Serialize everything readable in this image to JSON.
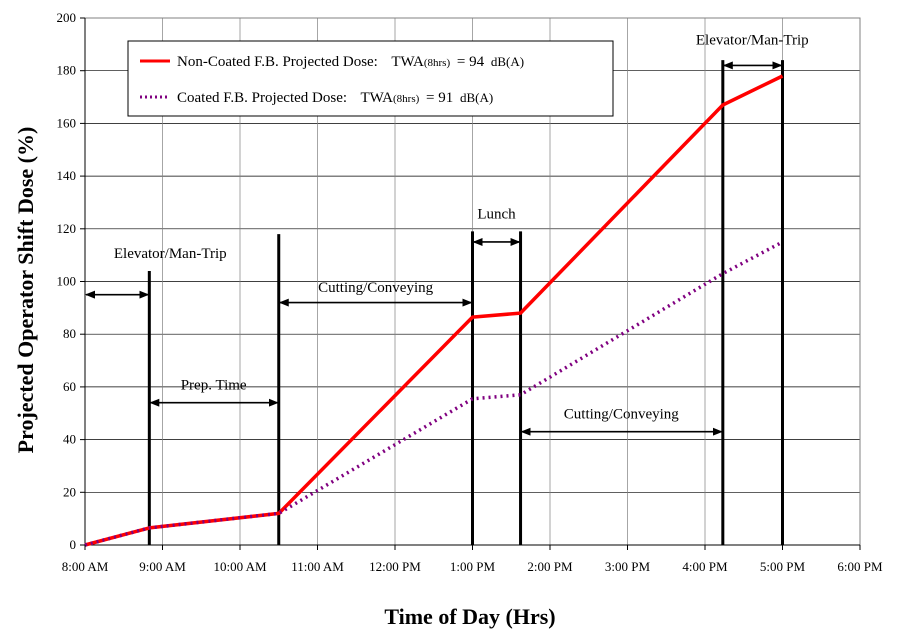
{
  "chart_data": {
    "type": "line",
    "xlabel": "Time of Day (Hrs)",
    "ylabel": "Projected Operator Shift Dose (%)",
    "xlim": [
      8,
      18
    ],
    "ylim": [
      0,
      200
    ],
    "grid": true,
    "legend_position": "top-left",
    "x_ticks": [
      {
        "x": 8,
        "label": "8:00 AM"
      },
      {
        "x": 9,
        "label": "9:00 AM"
      },
      {
        "x": 10,
        "label": "10:00 AM"
      },
      {
        "x": 11,
        "label": "11:00 AM"
      },
      {
        "x": 12,
        "label": "12:00 PM"
      },
      {
        "x": 13,
        "label": "1:00 PM"
      },
      {
        "x": 14,
        "label": "2:00 PM"
      },
      {
        "x": 15,
        "label": "3:00 PM"
      },
      {
        "x": 16,
        "label": "4:00 PM"
      },
      {
        "x": 17,
        "label": "5:00 PM"
      },
      {
        "x": 18,
        "label": "6:00 PM"
      }
    ],
    "y_ticks": [
      {
        "y": 0,
        "label": "0"
      },
      {
        "y": 20,
        "label": "20"
      },
      {
        "y": 40,
        "label": "40"
      },
      {
        "y": 60,
        "label": "60"
      },
      {
        "y": 80,
        "label": "80"
      },
      {
        "y": 100,
        "label": "100"
      },
      {
        "y": 120,
        "label": "120"
      },
      {
        "y": 140,
        "label": "140"
      },
      {
        "y": 160,
        "label": "160"
      },
      {
        "y": 180,
        "label": "180"
      },
      {
        "y": 200,
        "label": "200"
      }
    ],
    "series": [
      {
        "name": "Non-Coated F.B. Projected Dose:",
        "twa_label": "TWA",
        "twa_sub": "(8hrs)",
        "twa_value": "= 94",
        "twa_unit": "dB(A)",
        "color": "#ff0000",
        "style": "solid",
        "points": [
          [
            8,
            0
          ],
          [
            8.83,
            6.5
          ],
          [
            10.5,
            12
          ],
          [
            13,
            86.5
          ],
          [
            13.62,
            88
          ],
          [
            16.23,
            167
          ],
          [
            17,
            178
          ]
        ]
      },
      {
        "name": "Coated F.B. Projected Dose:",
        "twa_label": "TWA",
        "twa_sub": "(8hrs)",
        "twa_value": "= 91",
        "twa_unit": "dB(A)",
        "color": "#800080",
        "style": "dotted",
        "points": [
          [
            8,
            0
          ],
          [
            8.83,
            6.5
          ],
          [
            10.5,
            12
          ],
          [
            13,
            55.5
          ],
          [
            13.62,
            57
          ],
          [
            16.23,
            103
          ],
          [
            17,
            115
          ]
        ]
      }
    ],
    "markers": [
      {
        "x": 8.83,
        "y_top": 104
      },
      {
        "x": 10.5,
        "y_top": 118
      },
      {
        "x": 13,
        "y_top": 119
      },
      {
        "x": 13.62,
        "y_top": 119
      },
      {
        "x": 16.23,
        "y_top": 184
      },
      {
        "x": 17,
        "y_top": 184
      }
    ],
    "annotations": [
      {
        "text": "Elevator/Man-Trip",
        "x_from": 8,
        "x_to": 8.83,
        "y": 95,
        "text_x": 9.1,
        "text_y": 109
      },
      {
        "text": "Prep. Time",
        "x_from": 8.83,
        "x_to": 10.5,
        "y": 54,
        "text_x": 9.66,
        "text_y": 59
      },
      {
        "text": "Cutting/Conveying",
        "x_from": 10.5,
        "x_to": 13,
        "y": 92,
        "text_x": 11.75,
        "text_y": 96
      },
      {
        "text": "Lunch",
        "x_from": 13,
        "x_to": 13.62,
        "y": 115,
        "text_x": 13.31,
        "text_y": 124
      },
      {
        "text": "Cutting/Conveying",
        "x_from": 13.62,
        "x_to": 16.23,
        "y": 43,
        "text_x": 14.92,
        "text_y": 48
      },
      {
        "text": "Elevator/Man-Trip",
        "x_from": 16.23,
        "x_to": 17,
        "y": 182,
        "text_x": 16.61,
        "text_y": 190
      }
    ]
  }
}
